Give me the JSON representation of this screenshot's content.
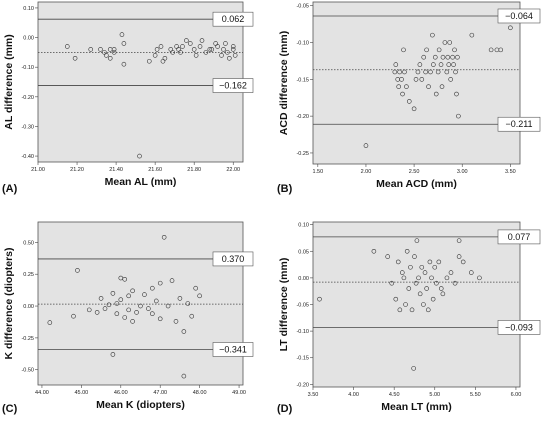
{
  "chart_data": [
    {
      "panel_label": "(A)",
      "type": "scatter",
      "xlabel": "Mean AL (mm)",
      "ylabel": "AL difference (mm)",
      "xlim": [
        21.0,
        22.05
      ],
      "ylim": [
        -0.42,
        0.12
      ],
      "xticks": [
        "21.00",
        "21.20",
        "21.40",
        "21.60",
        "21.80",
        "22.00"
      ],
      "yticks": [
        "0.10",
        "0.00",
        "-0.10",
        "-0.20",
        "-0.30",
        "-0.40"
      ],
      "grid": false,
      "lines": [
        {
          "value": 0.062,
          "label": "0.062",
          "style": "solid"
        },
        {
          "value": -0.05,
          "label": "",
          "style": "dotted"
        },
        {
          "value": -0.162,
          "label": "−0.162",
          "style": "solid"
        }
      ],
      "points": [
        [
          21.15,
          -0.03
        ],
        [
          21.19,
          -0.07
        ],
        [
          21.27,
          -0.04
        ],
        [
          21.32,
          -0.04
        ],
        [
          21.34,
          -0.05
        ],
        [
          21.35,
          -0.06
        ],
        [
          21.37,
          -0.07
        ],
        [
          21.37,
          -0.04
        ],
        [
          21.39,
          -0.05
        ],
        [
          21.39,
          -0.04
        ],
        [
          21.43,
          0.01
        ],
        [
          21.44,
          -0.02
        ],
        [
          21.44,
          -0.09
        ],
        [
          21.52,
          -0.4
        ],
        [
          21.57,
          -0.08
        ],
        [
          21.6,
          -0.06
        ],
        [
          21.61,
          -0.04
        ],
        [
          21.63,
          -0.03
        ],
        [
          21.64,
          -0.08
        ],
        [
          21.65,
          -0.07
        ],
        [
          21.68,
          -0.04
        ],
        [
          21.69,
          -0.05
        ],
        [
          21.71,
          -0.03
        ],
        [
          21.72,
          -0.04
        ],
        [
          21.73,
          -0.05
        ],
        [
          21.74,
          -0.03
        ],
        [
          21.76,
          -0.01
        ],
        [
          21.78,
          -0.02
        ],
        [
          21.8,
          -0.04
        ],
        [
          21.81,
          -0.06
        ],
        [
          21.83,
          -0.03
        ],
        [
          21.84,
          -0.01
        ],
        [
          21.86,
          -0.05
        ],
        [
          21.88,
          -0.04
        ],
        [
          21.89,
          -0.04
        ],
        [
          21.91,
          -0.02
        ],
        [
          21.92,
          -0.03
        ],
        [
          21.94,
          -0.06
        ],
        [
          21.95,
          -0.04
        ],
        [
          21.96,
          -0.02
        ],
        [
          21.97,
          -0.05
        ],
        [
          21.98,
          -0.07
        ],
        [
          22.0,
          -0.03
        ],
        [
          22.0,
          -0.04
        ],
        [
          22.01,
          -0.06
        ]
      ]
    },
    {
      "panel_label": "(B)",
      "type": "scatter",
      "xlabel": "Mean ACD (mm)",
      "ylabel": "ACD difference (mm)",
      "xlim": [
        1.45,
        3.6
      ],
      "ylim": [
        -0.265,
        -0.045
      ],
      "xticks": [
        "1.50",
        "2.00",
        "2.50",
        "3.00",
        "3.50"
      ],
      "yticks": [
        "-0.05",
        "-0.10",
        "-0.15",
        "-0.20",
        "-0.25"
      ],
      "grid": false,
      "lines": [
        {
          "value": -0.064,
          "label": "−0.064",
          "style": "solid"
        },
        {
          "value": -0.137,
          "label": "",
          "style": "dotted"
        },
        {
          "value": -0.211,
          "label": "−0.211",
          "style": "solid"
        }
      ],
      "points": [
        [
          2.0,
          -0.24
        ],
        [
          2.3,
          -0.14
        ],
        [
          2.31,
          -0.13
        ],
        [
          2.33,
          -0.15
        ],
        [
          2.34,
          -0.16
        ],
        [
          2.35,
          -0.14
        ],
        [
          2.37,
          -0.15
        ],
        [
          2.38,
          -0.17
        ],
        [
          2.39,
          -0.11
        ],
        [
          2.4,
          -0.14
        ],
        [
          2.42,
          -0.16
        ],
        [
          2.45,
          -0.18
        ],
        [
          2.5,
          -0.19
        ],
        [
          2.52,
          -0.15
        ],
        [
          2.54,
          -0.14
        ],
        [
          2.56,
          -0.13
        ],
        [
          2.58,
          -0.15
        ],
        [
          2.6,
          -0.12
        ],
        [
          2.62,
          -0.14
        ],
        [
          2.63,
          -0.11
        ],
        [
          2.65,
          -0.16
        ],
        [
          2.67,
          -0.14
        ],
        [
          2.69,
          -0.09
        ],
        [
          2.7,
          -0.13
        ],
        [
          2.72,
          -0.12
        ],
        [
          2.73,
          -0.17
        ],
        [
          2.75,
          -0.14
        ],
        [
          2.76,
          -0.11
        ],
        [
          2.78,
          -0.13
        ],
        [
          2.79,
          -0.16
        ],
        [
          2.8,
          -0.12
        ],
        [
          2.82,
          -0.1
        ],
        [
          2.84,
          -0.14
        ],
        [
          2.85,
          -0.12
        ],
        [
          2.86,
          -0.13
        ],
        [
          2.87,
          -0.1
        ],
        [
          2.88,
          -0.15
        ],
        [
          2.9,
          -0.12
        ],
        [
          2.91,
          -0.13
        ],
        [
          2.92,
          -0.11
        ],
        [
          2.93,
          -0.14
        ],
        [
          2.94,
          -0.17
        ],
        [
          2.95,
          -0.12
        ],
        [
          2.96,
          -0.2
        ],
        [
          3.1,
          -0.09
        ],
        [
          3.3,
          -0.11
        ],
        [
          3.36,
          -0.11
        ],
        [
          3.4,
          -0.11
        ],
        [
          3.5,
          -0.08
        ]
      ]
    },
    {
      "panel_label": "(C)",
      "type": "scatter",
      "xlabel": "Mean K (diopters)",
      "ylabel": "K difference (diopters)",
      "xlim": [
        43.9,
        49.1
      ],
      "ylim": [
        -0.62,
        0.66
      ],
      "xticks": [
        "44.00",
        "45.00",
        "46.00",
        "47.00",
        "48.00",
        "49.00"
      ],
      "yticks": [
        "0.50",
        "0.25",
        "0.00",
        "-0.25",
        "-0.50"
      ],
      "grid": false,
      "lines": [
        {
          "value": 0.37,
          "label": "0.370",
          "style": "solid"
        },
        {
          "value": 0.015,
          "label": "",
          "style": "dotted"
        },
        {
          "value": -0.341,
          "label": "−0.341",
          "style": "solid"
        }
      ],
      "points": [
        [
          44.2,
          -0.13
        ],
        [
          44.8,
          -0.08
        ],
        [
          44.9,
          0.28
        ],
        [
          45.2,
          -0.03
        ],
        [
          45.4,
          -0.05
        ],
        [
          45.5,
          0.06
        ],
        [
          45.6,
          -0.02
        ],
        [
          45.7,
          0.01
        ],
        [
          45.8,
          0.1
        ],
        [
          45.9,
          0.02
        ],
        [
          45.9,
          -0.06
        ],
        [
          46.0,
          0.05
        ],
        [
          46.0,
          0.22
        ],
        [
          46.1,
          0.21
        ],
        [
          46.1,
          -0.09
        ],
        [
          46.2,
          0.08
        ],
        [
          46.2,
          -0.03
        ],
        [
          46.3,
          0.12
        ],
        [
          46.3,
          -0.12
        ],
        [
          46.4,
          -0.05
        ],
        [
          46.5,
          0.0
        ],
        [
          46.6,
          0.09
        ],
        [
          46.7,
          -0.02
        ],
        [
          46.8,
          0.14
        ],
        [
          46.8,
          -0.06
        ],
        [
          46.9,
          0.04
        ],
        [
          47.0,
          0.18
        ],
        [
          47.0,
          -0.1
        ],
        [
          47.1,
          0.54
        ],
        [
          47.2,
          0.0
        ],
        [
          47.3,
          0.2
        ],
        [
          47.4,
          -0.12
        ],
        [
          47.5,
          0.06
        ],
        [
          47.6,
          -0.2
        ],
        [
          47.7,
          0.02
        ],
        [
          47.8,
          -0.08
        ],
        [
          47.9,
          0.14
        ],
        [
          48.0,
          0.08
        ],
        [
          47.6,
          -0.55
        ],
        [
          45.8,
          -0.38
        ]
      ]
    },
    {
      "panel_label": "(D)",
      "type": "scatter",
      "xlabel": "Mean LT (mm)",
      "ylabel": "LT difference (mm)",
      "xlim": [
        3.5,
        6.05
      ],
      "ylim": [
        -0.205,
        0.105
      ],
      "xticks": [
        "3.50",
        "4.00",
        "4.50",
        "5.00",
        "5.50",
        "6.00"
      ],
      "yticks": [
        "0.10",
        "0.05",
        "0.00",
        "-0.05",
        "-0.10",
        "-0.15",
        "-0.20"
      ],
      "grid": false,
      "lines": [
        {
          "value": 0.077,
          "label": "0.077",
          "style": "solid"
        },
        {
          "value": -0.008,
          "label": "",
          "style": "dotted"
        },
        {
          "value": -0.093,
          "label": "−0.093",
          "style": "solid"
        }
      ],
      "points": [
        [
          3.58,
          -0.04
        ],
        [
          4.25,
          0.05
        ],
        [
          4.42,
          0.04
        ],
        [
          4.47,
          -0.01
        ],
        [
          4.52,
          -0.04
        ],
        [
          4.55,
          0.03
        ],
        [
          4.57,
          -0.06
        ],
        [
          4.6,
          0.01
        ],
        [
          4.62,
          0.0
        ],
        [
          4.64,
          -0.05
        ],
        [
          4.66,
          0.05
        ],
        [
          4.68,
          -0.02
        ],
        [
          4.7,
          0.02
        ],
        [
          4.72,
          -0.06
        ],
        [
          4.74,
          -0.17
        ],
        [
          4.75,
          0.04
        ],
        [
          4.77,
          -0.01
        ],
        [
          4.78,
          0.07
        ],
        [
          4.8,
          0.0
        ],
        [
          4.82,
          -0.03
        ],
        [
          4.84,
          0.02
        ],
        [
          4.86,
          -0.05
        ],
        [
          4.88,
          0.01
        ],
        [
          4.9,
          -0.02
        ],
        [
          4.92,
          -0.06
        ],
        [
          4.94,
          0.03
        ],
        [
          4.96,
          0.0
        ],
        [
          4.98,
          -0.04
        ],
        [
          5.0,
          0.02
        ],
        [
          5.02,
          -0.01
        ],
        [
          5.05,
          0.03
        ],
        [
          5.08,
          -0.02
        ],
        [
          5.1,
          -0.03
        ],
        [
          5.15,
          0.0
        ],
        [
          5.2,
          0.01
        ],
        [
          5.25,
          -0.01
        ],
        [
          5.3,
          0.04
        ],
        [
          5.35,
          0.03
        ],
        [
          5.45,
          0.01
        ],
        [
          5.55,
          0.0
        ],
        [
          5.3,
          0.07
        ]
      ]
    }
  ]
}
